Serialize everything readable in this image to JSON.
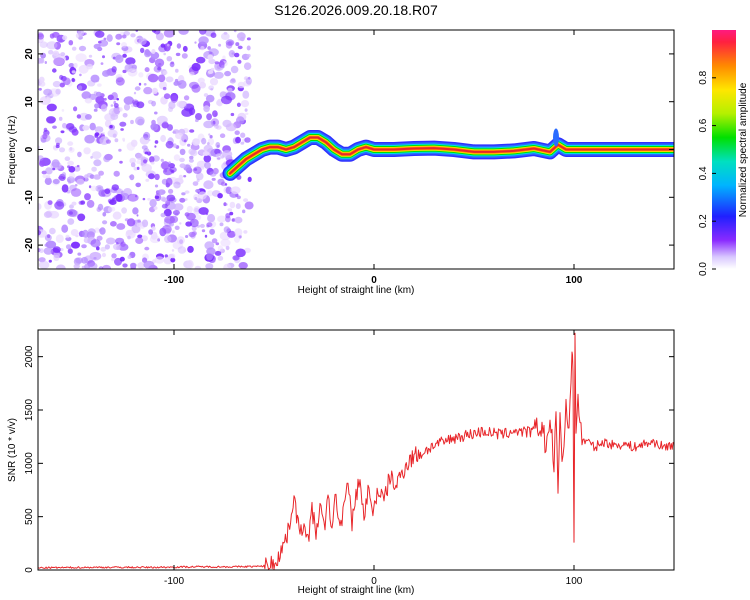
{
  "title": "S126.2026.009.20.18.R07",
  "colors": {
    "line": "#e8262a",
    "ridge": [
      "#e8262a",
      "#ff8a00",
      "#ffe600",
      "#00e000",
      "#00e0e0",
      "#2b6cff",
      "#1a1aff"
    ],
    "noise": [
      "#7a2bff",
      "#9a55ff",
      "#b58cff",
      "#d3b7ff",
      "#ead9ff"
    ]
  },
  "chart_data": [
    {
      "type": "heatmap",
      "title": "S126.2026.009.20.18.R07",
      "xlabel": "Height of straight line (km)",
      "ylabel": "Frequency (Hz)",
      "xlim": [
        -168,
        150
      ],
      "ylim": [
        -25,
        25
      ],
      "x_ticks": [
        -100,
        0,
        100
      ],
      "y_ticks": [
        20,
        10,
        0,
        -10,
        -20
      ],
      "x_tick_labels": [
        "-100",
        "0",
        "100"
      ],
      "y_tick_labels": [
        "20",
        "10",
        "0",
        "-10",
        "-20"
      ],
      "noise_region_x": [
        -168,
        -62
      ],
      "ridge": {
        "x": [
          -72,
          -68,
          -64,
          -60,
          -56,
          -52,
          -48,
          -44,
          -40,
          -36,
          -32,
          -28,
          -24,
          -20,
          -16,
          -12,
          -8,
          -4,
          0,
          10,
          20,
          30,
          40,
          50,
          60,
          70,
          80,
          88,
          92,
          96,
          100,
          110,
          120,
          130,
          140,
          150
        ],
        "y": [
          -5,
          -3.5,
          -2,
          -1,
          0,
          0.5,
          0.5,
          0,
          0.5,
          1.5,
          2.5,
          2.5,
          1.5,
          0,
          -1,
          -1,
          0,
          0.5,
          0,
          0,
          0.2,
          0.3,
          0,
          -0.5,
          -0.5,
          -0.3,
          0.2,
          -0.5,
          1,
          0,
          0,
          0,
          0,
          0,
          0,
          0
        ]
      },
      "colorbar": {
        "label": "Normalized spectral amplitude",
        "range": [
          0,
          1
        ],
        "ticks": [
          0.0,
          0.2,
          0.4,
          0.6,
          0.8
        ],
        "tick_labels": [
          "0.0",
          "0.2",
          "0.4",
          "0.6",
          "0.8"
        ]
      }
    },
    {
      "type": "line",
      "xlabel": "Height of straight line (km)",
      "ylabel": "SNR (10 * v/v)",
      "xlim": [
        -168,
        150
      ],
      "ylim": [
        0,
        2250
      ],
      "x_ticks": [
        -100,
        0,
        100
      ],
      "y_ticks": [
        0,
        500,
        1000,
        1500,
        2000
      ],
      "x_tick_labels": [
        "-100",
        "0",
        "100"
      ],
      "y_tick_labels": [
        "0",
        "500",
        "1000",
        "1500",
        "2000"
      ],
      "series": [
        {
          "name": "SNR",
          "x": [
            -168,
            -140,
            -110,
            -90,
            -70,
            -55,
            -50,
            -46,
            -43,
            -40,
            -37,
            -35,
            -33,
            -31,
            -29,
            -27,
            -25,
            -23,
            -21,
            -19,
            -17,
            -15,
            -13,
            -11,
            -9,
            -7,
            -5,
            -3,
            -1,
            2,
            5,
            8,
            11,
            14,
            17,
            20,
            25,
            30,
            35,
            40,
            45,
            50,
            55,
            60,
            65,
            70,
            75,
            80,
            84,
            86,
            88,
            90,
            91,
            92,
            93,
            94,
            95,
            96,
            97,
            98,
            99,
            99.5,
            100,
            100.5,
            101,
            102,
            104,
            106,
            110,
            115,
            120,
            125,
            130,
            135,
            140,
            145,
            150
          ],
          "y": [
            20,
            25,
            25,
            30,
            30,
            35,
            60,
            200,
            350,
            700,
            300,
            480,
            280,
            550,
            350,
            600,
            380,
            650,
            420,
            700,
            380,
            620,
            780,
            450,
            700,
            870,
            450,
            780,
            520,
            760,
            640,
            880,
            780,
            920,
            1010,
            1070,
            1110,
            1170,
            1200,
            1240,
            1260,
            1280,
            1300,
            1280,
            1270,
            1310,
            1290,
            1300,
            1350,
            1150,
            1400,
            1000,
            1450,
            650,
            1500,
            1050,
            1200,
            1550,
            1300,
            1600,
            2000,
            1800,
            230,
            2250,
            1300,
            1600,
            1200,
            1220,
            1150,
            1200,
            1170,
            1180,
            1150,
            1180,
            1200,
            1150,
            1180
          ]
        }
      ]
    }
  ]
}
